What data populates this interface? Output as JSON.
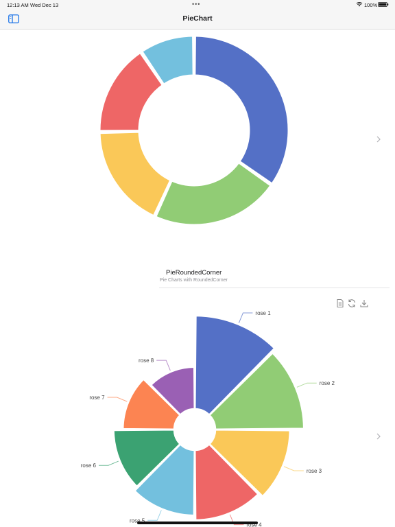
{
  "status_bar": {
    "time": "12:13 AM",
    "date": "Wed Dec 13",
    "battery": "100%"
  },
  "nav": {
    "title": "PieChart"
  },
  "cells": [
    {
      "title": "",
      "subtitle": ""
    },
    {
      "title": "PieRoundedCorner",
      "subtitle": "Pie Charts with RoundedCorner"
    }
  ],
  "chart_data": [
    {
      "type": "pie",
      "variant": "doughnut-rounded-corner",
      "title": "",
      "labels_visible": false,
      "values": [
        33,
        21,
        17,
        15,
        9
      ],
      "colors": [
        "#5470c6",
        "#91cc75",
        "#fac858",
        "#ee6666",
        "#73c0de"
      ]
    },
    {
      "type": "pie",
      "variant": "nightingale-rose-rounded",
      "title": "",
      "labels": [
        "rose 1",
        "rose 2",
        "rose 3",
        "rose 4",
        "rose 5",
        "rose 6",
        "rose 7",
        "rose 8"
      ],
      "values": [
        40,
        38,
        32,
        30,
        28,
        26,
        22,
        18
      ],
      "colors": [
        "#5470c6",
        "#91cc75",
        "#fac858",
        "#ee6666",
        "#73c0de",
        "#3ba272",
        "#fc8452",
        "#9a60b4"
      ],
      "toolbox": [
        "data-view",
        "restore",
        "save-as-image"
      ]
    }
  ]
}
